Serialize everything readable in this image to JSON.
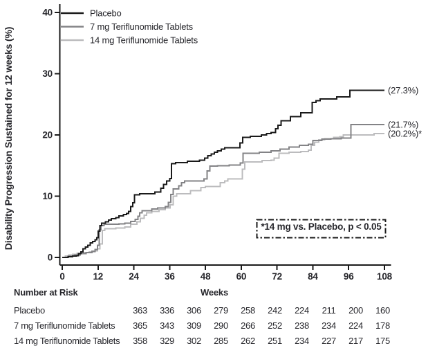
{
  "figure": {
    "background": "#ffffff",
    "text_color": "#26262b",
    "axis_color": "#1a1a1a"
  },
  "chart_data": {
    "type": "line",
    "style": "step-after",
    "title": "",
    "xlabel": "Weeks",
    "ylabel": "Disability Progression Sustained for 12 weeks (%)",
    "xlim": [
      0,
      108
    ],
    "ylim": [
      0,
      40
    ],
    "xticks": [
      "0",
      "12",
      "24",
      "36",
      "48",
      "60",
      "72",
      "84",
      "96",
      "108"
    ],
    "yticks": [
      "0",
      "10",
      "20",
      "30",
      "40"
    ],
    "grid": "off",
    "legend_position": "top-left-inside",
    "annotation": "*14 mg vs. Placebo, p < 0.05",
    "series": [
      {
        "name": "Placebo",
        "color": "#1a1a1a",
        "end_label": "(27.3%)",
        "final_value": 27.3,
        "points": [
          [
            0,
            0
          ],
          [
            2,
            0.1
          ],
          [
            3.5,
            0.2
          ],
          [
            4.8,
            0.3
          ],
          [
            5.5,
            0.6
          ],
          [
            6.2,
            0.9
          ],
          [
            7,
            1.4
          ],
          [
            7.8,
            1.7
          ],
          [
            8.6,
            2.0
          ],
          [
            9.4,
            2.4
          ],
          [
            10.2,
            2.6
          ],
          [
            11,
            2.9
          ],
          [
            11.6,
            3.2
          ],
          [
            12.1,
            4.3
          ],
          [
            12.6,
            5.2
          ],
          [
            13.2,
            5.6
          ],
          [
            14.5,
            5.8
          ],
          [
            15.5,
            6.1
          ],
          [
            16.5,
            6.3
          ],
          [
            18,
            6.5
          ],
          [
            19,
            6.8
          ],
          [
            20.5,
            7.0
          ],
          [
            21.5,
            7.2
          ],
          [
            22.3,
            7.5
          ],
          [
            23,
            8.3
          ],
          [
            23.6,
            8.9
          ],
          [
            24.2,
            10.2
          ],
          [
            26,
            10.4
          ],
          [
            31,
            10.7
          ],
          [
            33,
            11.3
          ],
          [
            34,
            11.9
          ],
          [
            35,
            12.5
          ],
          [
            36,
            12.9
          ],
          [
            36.6,
            15.3
          ],
          [
            38,
            15.5
          ],
          [
            42,
            15.7
          ],
          [
            46,
            15.9
          ],
          [
            47.8,
            16.2
          ],
          [
            48.8,
            16.6
          ],
          [
            49.9,
            16.9
          ],
          [
            51,
            17.2
          ],
          [
            52,
            17.4
          ],
          [
            53.3,
            17.7
          ],
          [
            54.5,
            17.9
          ],
          [
            59.6,
            18.7
          ],
          [
            60.5,
            19.6
          ],
          [
            63,
            19.8
          ],
          [
            66.8,
            20.0
          ],
          [
            68.5,
            20.2
          ],
          [
            70,
            20.4
          ],
          [
            71.5,
            21.0
          ],
          [
            72.3,
            21.6
          ],
          [
            73.3,
            22.3
          ],
          [
            76.5,
            23.0
          ],
          [
            80,
            23.6
          ],
          [
            83.8,
            25.3
          ],
          [
            85,
            25.6
          ],
          [
            86.5,
            25.9
          ],
          [
            92,
            26.2
          ],
          [
            96.4,
            27.3
          ],
          [
            108,
            27.3
          ]
        ]
      },
      {
        "name": "7 mg Teriflunomide Tablets",
        "color": "#838386",
        "end_label": "(21.7%)",
        "final_value": 21.7,
        "points": [
          [
            0,
            0
          ],
          [
            2,
            0.2
          ],
          [
            4,
            0.4
          ],
          [
            6,
            0.6
          ],
          [
            8,
            0.8
          ],
          [
            10,
            1.0
          ],
          [
            11,
            1.3
          ],
          [
            11.8,
            2.0
          ],
          [
            12.4,
            4.5
          ],
          [
            13,
            5.2
          ],
          [
            14,
            5.4
          ],
          [
            19,
            5.5
          ],
          [
            21,
            5.6
          ],
          [
            23,
            5.9
          ],
          [
            24.5,
            6.2
          ],
          [
            25.4,
            6.7
          ],
          [
            26,
            7.3
          ],
          [
            26.8,
            7.6
          ],
          [
            30,
            7.9
          ],
          [
            32,
            8.1
          ],
          [
            34.5,
            8.3
          ],
          [
            35.6,
            9.0
          ],
          [
            36.4,
            10.3
          ],
          [
            37.2,
            11.2
          ],
          [
            39,
            11.7
          ],
          [
            40,
            12.2
          ],
          [
            41,
            12.5
          ],
          [
            47.5,
            12.8
          ],
          [
            48.6,
            14.1
          ],
          [
            49.5,
            14.9
          ],
          [
            52,
            15.0
          ],
          [
            56,
            15.1
          ],
          [
            59.7,
            15.4
          ],
          [
            60.6,
            17.0
          ],
          [
            66,
            17.2
          ],
          [
            70,
            17.4
          ],
          [
            73,
            17.7
          ],
          [
            76,
            18.0
          ],
          [
            79.5,
            18.3
          ],
          [
            82.5,
            18.5
          ],
          [
            84,
            19.1
          ],
          [
            87,
            19.3
          ],
          [
            90,
            19.4
          ],
          [
            93.5,
            19.5
          ],
          [
            96.8,
            21.7
          ],
          [
            108,
            21.7
          ]
        ]
      },
      {
        "name": "14 mg Teriflunomide Tablets",
        "color": "#bcbcbe",
        "end_label": "(20.2%)*",
        "final_value": 20.2,
        "points": [
          [
            0,
            0
          ],
          [
            1,
            0.2
          ],
          [
            2.2,
            0.4
          ],
          [
            3.5,
            0.5
          ],
          [
            5,
            0.7
          ],
          [
            7,
            0.8
          ],
          [
            9,
            0.9
          ],
          [
            11,
            1.1
          ],
          [
            11.8,
            1.4
          ],
          [
            12.6,
            2.2
          ],
          [
            13.4,
            4.4
          ],
          [
            14.2,
            4.7
          ],
          [
            18,
            4.8
          ],
          [
            21,
            5.0
          ],
          [
            22.9,
            5.4
          ],
          [
            25,
            5.8
          ],
          [
            26.2,
            6.4
          ],
          [
            27.5,
            6.9
          ],
          [
            28.3,
            7.3
          ],
          [
            30,
            7.5
          ],
          [
            32.5,
            7.8
          ],
          [
            34.5,
            8.1
          ],
          [
            36.2,
            8.6
          ],
          [
            37.2,
            10.0
          ],
          [
            38.4,
            10.4
          ],
          [
            43,
            10.9
          ],
          [
            46.5,
            11.4
          ],
          [
            48,
            11.6
          ],
          [
            53,
            12.2
          ],
          [
            54.5,
            12.5
          ],
          [
            55.5,
            12.8
          ],
          [
            60.4,
            14.4
          ],
          [
            61.2,
            15.6
          ],
          [
            67,
            15.8
          ],
          [
            70,
            15.9
          ],
          [
            71,
            16.2
          ],
          [
            72.6,
            17.0
          ],
          [
            76,
            17.2
          ],
          [
            80,
            17.3
          ],
          [
            82.5,
            17.5
          ],
          [
            83.4,
            18.3
          ],
          [
            84.6,
            18.8
          ],
          [
            86,
            19.2
          ],
          [
            88,
            19.4
          ],
          [
            91,
            19.6
          ],
          [
            93,
            19.7
          ],
          [
            94.2,
            20.0
          ],
          [
            104.5,
            20.2
          ],
          [
            108,
            20.2
          ]
        ]
      }
    ]
  },
  "risk_table": {
    "header": "Number at Risk",
    "weeks_label": "Weeks",
    "rows": [
      {
        "label": "Placebo",
        "values": [
          "363",
          "336",
          "306",
          "279",
          "258",
          "242",
          "224",
          "211",
          "200",
          "160"
        ]
      },
      {
        "label": "7 mg Teriflunomide Tablets",
        "values": [
          "365",
          "343",
          "309",
          "290",
          "266",
          "252",
          "238",
          "234",
          "224",
          "178"
        ]
      },
      {
        "label": "14 mg Teriflunomide Tablets",
        "values": [
          "358",
          "329",
          "302",
          "285",
          "262",
          "251",
          "234",
          "227",
          "217",
          "175"
        ]
      }
    ]
  }
}
